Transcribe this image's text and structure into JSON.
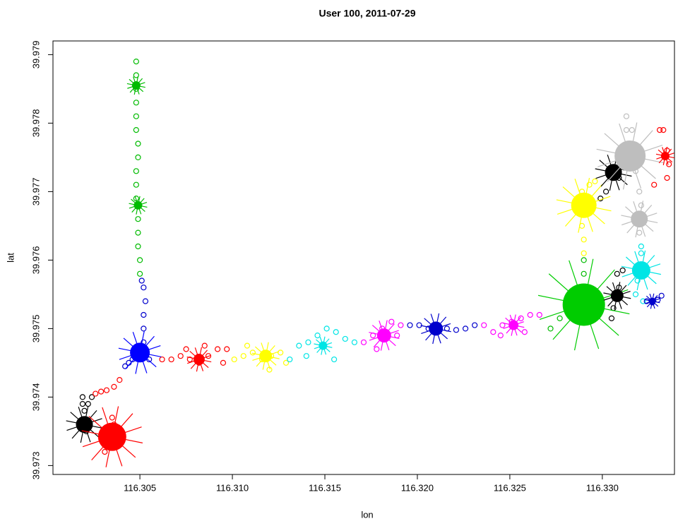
{
  "chart_data": {
    "type": "scatter",
    "title": "User 100, 2011-07-29",
    "x_label": "lon",
    "y_label": "lat",
    "xlim": [
      116.3003,
      116.3339
    ],
    "ylim": [
      39.97287,
      39.9792
    ],
    "xticks": [
      116.305,
      {
        "value": 116.31,
        "label": "116.310"
      },
      116.315,
      {
        "value": 116.32,
        "label": "116.320"
      },
      116.325,
      {
        "value": 116.33,
        "label": "116.330"
      }
    ],
    "yticks": [
      39.973,
      39.974,
      39.975,
      39.976,
      39.977,
      39.978,
      39.979
    ],
    "series": [
      {
        "color": "#000000",
        "x": [
          116.3019,
          116.3019,
          116.302,
          116.3022,
          116.3024,
          116.3019,
          116.3021
        ],
        "y": [
          39.974,
          39.9739,
          39.9738,
          39.9739,
          39.974,
          39.9736,
          39.9735
        ]
      },
      {
        "color": "#ff0000",
        "x": [
          116.3026,
          116.3029,
          116.3032,
          116.3036,
          116.3039,
          116.3035,
          116.3036,
          116.3034,
          116.3031,
          116.3037
        ],
        "y": [
          39.97405,
          39.97408,
          39.9741,
          39.97415,
          39.97425,
          39.9737,
          39.9736,
          39.9733,
          39.9732,
          39.9733
        ]
      },
      {
        "color": "#0000cc",
        "x": [
          116.3042,
          116.3044,
          116.3046,
          116.3049,
          116.3052,
          116.3052,
          116.3052,
          116.3053,
          116.3052,
          116.3051,
          116.3051,
          116.3055
        ],
        "y": [
          39.97445,
          39.9745,
          39.97455,
          39.9746,
          39.9748,
          39.975,
          39.9752,
          39.9754,
          39.9756,
          39.9757,
          39.97455,
          39.97455
        ]
      },
      {
        "color": "#00bb00",
        "x": [
          116.305,
          116.305,
          116.3049,
          116.3049,
          116.3049,
          116.3048,
          116.3048,
          116.3048,
          116.3049,
          116.3049,
          116.3048,
          116.3048,
          116.3048,
          116.3048,
          116.3048,
          116.3048
        ],
        "y": [
          39.9758,
          39.976,
          39.9762,
          39.9764,
          39.9766,
          39.9769,
          39.9771,
          39.9773,
          39.9775,
          39.9777,
          39.9779,
          39.9781,
          39.9783,
          39.9785,
          39.9787,
          39.9789
        ]
      },
      {
        "color": "#ff0000",
        "x": [
          116.3062,
          116.3067,
          116.3072,
          116.3077,
          116.3082,
          116.3087,
          116.3092,
          116.3097,
          116.3075,
          116.3085,
          116.3095
        ],
        "y": [
          39.97455,
          39.97455,
          39.9746,
          39.97455,
          39.9745,
          39.9746,
          39.9747,
          39.9747,
          39.9747,
          39.97475,
          39.9745
        ]
      },
      {
        "color": "#ffff00",
        "x": [
          116.3101,
          116.3106,
          116.3111,
          116.3116,
          116.3121,
          116.3126,
          116.3129,
          116.3108,
          116.312
        ],
        "y": [
          39.97455,
          39.9746,
          39.97465,
          39.97455,
          39.9746,
          39.97465,
          39.9745,
          39.97475,
          39.9744
        ]
      },
      {
        "color": "#00e5e5",
        "x": [
          116.3131,
          116.3136,
          116.3141,
          116.3146,
          116.3151,
          116.3156,
          116.3161,
          116.3166,
          116.314,
          116.3155
        ],
        "y": [
          39.97455,
          39.97475,
          39.9748,
          39.9749,
          39.975,
          39.97495,
          39.97485,
          39.9748,
          39.9746,
          39.97455
        ]
      },
      {
        "color": "#ff00ff",
        "x": [
          116.3171,
          116.3176,
          116.3181,
          116.3186,
          116.3191,
          116.3178,
          116.3189
        ],
        "y": [
          39.9748,
          39.9749,
          39.975,
          39.9751,
          39.97505,
          39.9747,
          39.9749
        ]
      },
      {
        "color": "#0000cc",
        "x": [
          116.3196,
          116.3201,
          116.3206,
          116.3211,
          116.3216,
          116.3221,
          116.3226,
          116.3231
        ],
        "y": [
          39.97505,
          39.97505,
          39.975,
          39.97505,
          39.975,
          39.97498,
          39.975,
          39.97505
        ]
      },
      {
        "color": "#ff00ff",
        "x": [
          116.3236,
          116.3241,
          116.3246,
          116.3251,
          116.3256,
          116.3261,
          116.3266,
          116.3245,
          116.3258
        ],
        "y": [
          39.97505,
          39.97495,
          39.97505,
          39.9751,
          39.97515,
          39.9752,
          39.9752,
          39.9749,
          39.97495
        ]
      },
      {
        "color": "#00bb00",
        "x": [
          116.3272,
          116.3277,
          116.3282,
          116.329,
          116.329,
          116.329
        ],
        "y": [
          39.975,
          39.97515,
          39.9753,
          39.9756,
          39.9758,
          39.976
        ]
      },
      {
        "color": "#ffff00",
        "x": [
          116.329,
          116.329,
          116.3289,
          116.3289,
          116.3293,
          116.3296
        ],
        "y": [
          39.9761,
          39.9763,
          39.9765,
          39.977,
          39.9771,
          39.97715
        ]
      },
      {
        "color": "#000000",
        "x": [
          116.3299,
          116.3302,
          116.3309,
          116.3312,
          116.3306,
          116.3309,
          116.3308,
          116.3305,
          116.3311
        ],
        "y": [
          39.9769,
          39.977,
          39.9772,
          39.97735,
          39.9753,
          39.9756,
          39.9758,
          39.97515,
          39.97585
        ]
      },
      {
        "color": "#bebebe",
        "x": [
          116.3313,
          116.3316,
          116.3318,
          116.332,
          116.3321,
          116.3321,
          116.332,
          116.3313
        ],
        "y": [
          39.9781,
          39.9779,
          39.9773,
          39.977,
          39.9768,
          39.9766,
          39.9764,
          39.9779
        ]
      },
      {
        "color": "#00e5e5",
        "x": [
          116.3321,
          116.3321,
          116.332,
          116.3319,
          116.3318,
          116.3322
        ],
        "y": [
          39.9762,
          39.9761,
          39.9759,
          39.9757,
          39.9755,
          39.9754
        ]
      },
      {
        "color": "#0000cc",
        "x": [
          116.3324,
          116.3327,
          116.333,
          116.3332
        ],
        "y": [
          39.9754,
          39.97538,
          39.97542,
          39.97548
        ]
      },
      {
        "color": "#ff0000",
        "x": [
          116.3331,
          116.3333,
          116.3335,
          116.3336,
          116.3335,
          116.3328
        ],
        "y": [
          39.9779,
          39.9779,
          39.9776,
          39.9774,
          39.9772,
          39.9771
        ]
      }
    ],
    "clusters": {
      "x": [
        116.302,
        116.3035,
        116.305,
        116.3048,
        116.3049,
        116.3082,
        116.3118,
        116.3149,
        116.3182,
        116.321,
        116.3252,
        116.329,
        116.329,
        116.3306,
        116.3315,
        116.332,
        116.3321,
        116.3308,
        116.3327,
        116.3334
      ],
      "y": [
        39.9736,
        39.97342,
        39.97465,
        39.97855,
        39.9768,
        39.97455,
        39.9746,
        39.97475,
        39.9749,
        39.975,
        39.97505,
        39.97535,
        39.9768,
        39.97728,
        39.97752,
        39.9766,
        39.97585,
        39.97548,
        39.9754,
        39.97752
      ],
      "size": [
        12,
        20,
        14,
        6,
        6,
        8,
        9,
        6,
        10,
        10,
        7,
        30,
        18,
        12,
        22,
        12,
        13,
        9,
        5,
        6
      ],
      "colors": [
        "#000000",
        "#ff0000",
        "#0000ff",
        "#00bb00",
        "#00bb00",
        "#ff0000",
        "#ffff00",
        "#00e5e5",
        "#ff00ff",
        "#0000cc",
        "#ff00ff",
        "#00cc00",
        "#ffff00",
        "#000000",
        "#bebebe",
        "#bebebe",
        "#00e5e5",
        "#000000",
        "#0000cc",
        "#ff0000"
      ]
    }
  }
}
